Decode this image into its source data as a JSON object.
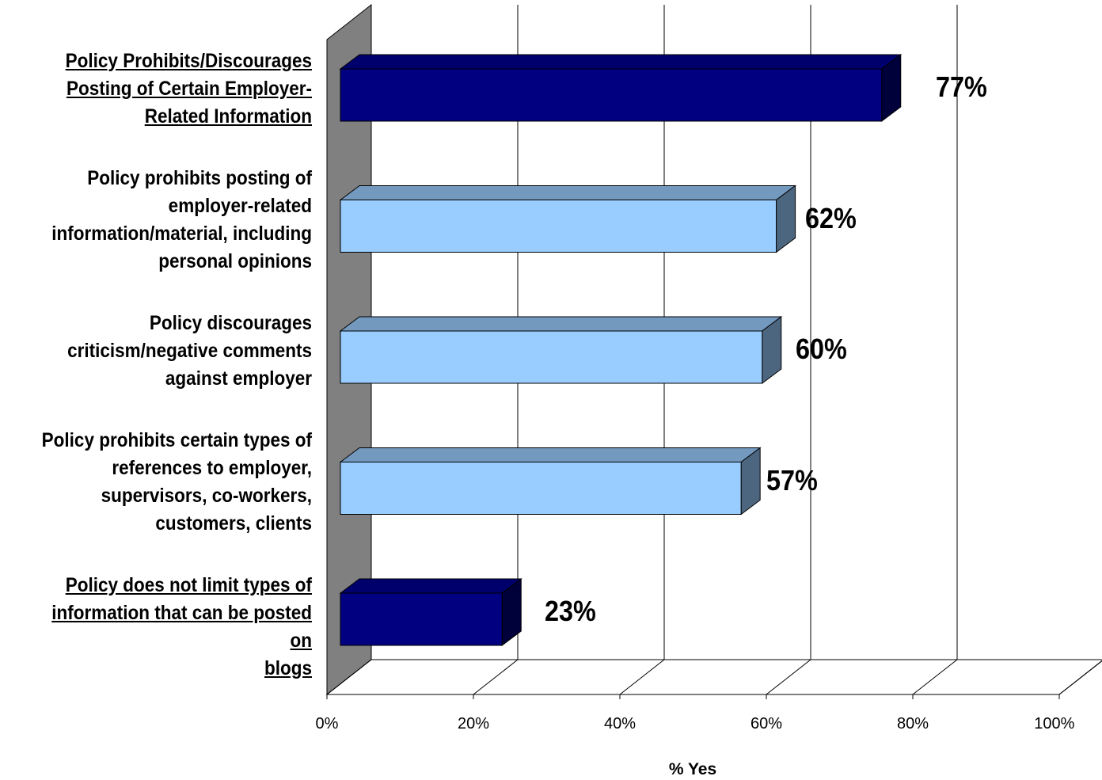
{
  "chart_data": {
    "type": "bar",
    "orientation": "horizontal",
    "style": "3d",
    "categories": [
      "Policy Prohibits/Discourages Posting of Certain Employer-Related Information",
      "Policy prohibits posting of employer-related information/material, including personal opinions",
      "Policy discourages criticism/negative comments against employer",
      "Policy prohibits certain types of references to employer, supervisors, co-workers, customers, clients",
      "Policy does not limit types of information that can be posted on blogs"
    ],
    "category_lines": [
      [
        "Policy Prohibits/Discourages",
        "Posting of Certain Employer-",
        "Related Information"
      ],
      [
        "Policy prohibits posting of",
        "employer-related",
        "information/material, including",
        "personal opinions"
      ],
      [
        "Policy discourages",
        "criticism/negative comments",
        "against employer"
      ],
      [
        "Policy prohibits certain types of",
        "references to employer,",
        "supervisors, co-workers,",
        "customers, clients"
      ],
      [
        "Policy does not limit types of",
        "information that can be posted on",
        "blogs"
      ]
    ],
    "underlined": [
      true,
      false,
      false,
      false,
      true
    ],
    "values": [
      77,
      62,
      60,
      57,
      23
    ],
    "value_labels": [
      "77%",
      "62%",
      "60%",
      "57%",
      "23%"
    ],
    "bar_colors": [
      "#000080",
      "#99ccff",
      "#99ccff",
      "#99ccff",
      "#000080"
    ],
    "xlabel": "% Yes",
    "xlim": [
      0,
      100
    ],
    "xticks": [
      0,
      20,
      40,
      60,
      80,
      100
    ],
    "xtick_labels": [
      "0%",
      "20%",
      "40%",
      "60%",
      "80%",
      "100%"
    ],
    "grid": true,
    "wall_color": "#808080"
  }
}
